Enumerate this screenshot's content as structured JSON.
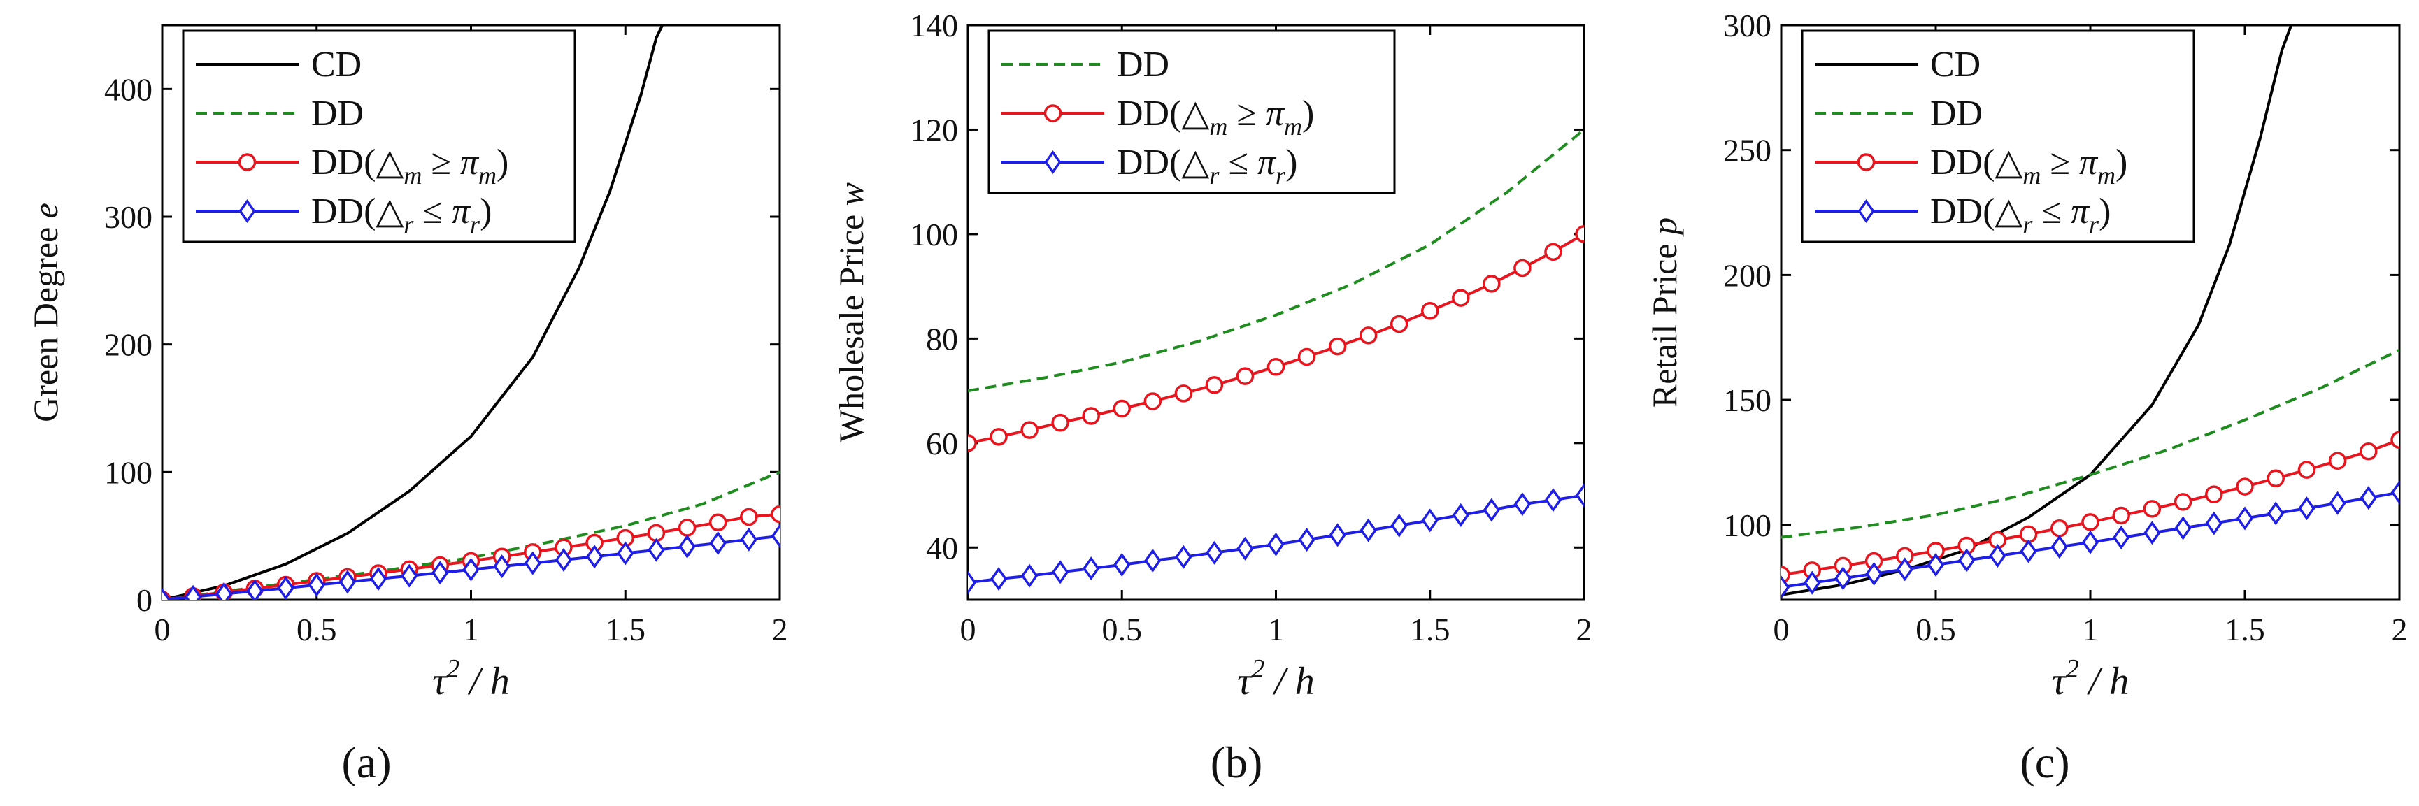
{
  "chart_data": [
    {
      "type": "line",
      "panel": "(a)",
      "ylabel": "Green Degree",
      "ylabel_var": "e",
      "xlabel": "τ² / h",
      "xlim": [
        0,
        2
      ],
      "ylim": [
        0,
        450
      ],
      "xticks": [
        0,
        0.5,
        1,
        1.5,
        2
      ],
      "xtick_labels": [
        "0",
        "0.5",
        "1",
        "1.5",
        "2"
      ],
      "yticks": [
        0,
        100,
        200,
        300,
        400
      ],
      "ytick_labels": [
        "0",
        "100",
        "200",
        "300",
        "400"
      ],
      "legend_position": "top-left",
      "series": [
        {
          "name": "CD",
          "legend": "CD",
          "color": "#000000",
          "style": "solid",
          "marker": "none",
          "x": [
            0,
            0.2,
            0.4,
            0.6,
            0.8,
            1.0,
            1.2,
            1.35,
            1.45,
            1.55,
            1.6,
            1.62
          ],
          "y": [
            0,
            11,
            28,
            52,
            85,
            128,
            190,
            260,
            320,
            395,
            440,
            450
          ]
        },
        {
          "name": "DD",
          "legend": "DD",
          "color": "#1e8c1e",
          "style": "dashed",
          "marker": "none",
          "x": [
            0,
            0.25,
            0.5,
            0.75,
            1.0,
            1.25,
            1.5,
            1.75,
            2.0
          ],
          "y": [
            0,
            8,
            16,
            24,
            33,
            45,
            58,
            75,
            100
          ]
        },
        {
          "name": "DD(Δm ≥ πm)",
          "legend": "DD(",
          "color": "#e8141e",
          "style": "solid",
          "marker": "circle",
          "x": [
            0,
            0.1,
            0.2,
            0.3,
            0.4,
            0.5,
            0.6,
            0.7,
            0.8,
            0.9,
            1.0,
            1.1,
            1.2,
            1.3,
            1.4,
            1.5,
            1.6,
            1.7,
            1.8,
            1.9,
            2.0
          ],
          "y": [
            0,
            2.9,
            5.9,
            8.8,
            11.8,
            14.8,
            17.8,
            20.8,
            23.9,
            27.1,
            30.4,
            33.8,
            37.3,
            40.9,
            44.6,
            48.4,
            52.3,
            56.4,
            60.6,
            64.9,
            67
          ]
        },
        {
          "name": "DD(Δr ≤ πr)",
          "legend": "DD(",
          "color": "#1e1ee6",
          "style": "solid",
          "marker": "diamond",
          "x": [
            0,
            0.1,
            0.2,
            0.3,
            0.4,
            0.5,
            0.6,
            0.7,
            0.8,
            0.9,
            1.0,
            1.1,
            1.2,
            1.3,
            1.4,
            1.5,
            1.6,
            1.7,
            1.8,
            1.9,
            2.0
          ],
          "y": [
            0,
            2.3,
            4.6,
            6.9,
            9.2,
            11.6,
            14.0,
            16.4,
            18.8,
            21.2,
            23.7,
            26.2,
            28.7,
            31.2,
            33.8,
            36.4,
            39.0,
            41.7,
            44.4,
            47.2,
            50
          ]
        }
      ]
    },
    {
      "type": "line",
      "panel": "(b)",
      "ylabel": "Wholesale Price",
      "ylabel_var": "w",
      "xlabel": "τ² / h",
      "xlim": [
        0,
        2
      ],
      "ylim": [
        30,
        140
      ],
      "xticks": [
        0,
        0.5,
        1,
        1.5,
        2
      ],
      "xtick_labels": [
        "0",
        "0.5",
        "1",
        "1.5",
        "2"
      ],
      "yticks": [
        40,
        60,
        80,
        100,
        120,
        140
      ],
      "ytick_labels": [
        "40",
        "60",
        "80",
        "100",
        "120",
        "140"
      ],
      "legend_position": "top-left",
      "series": [
        {
          "name": "DD",
          "legend": "DD",
          "color": "#1e8c1e",
          "style": "dashed",
          "marker": "none",
          "x": [
            0,
            0.25,
            0.5,
            0.75,
            1.0,
            1.25,
            1.5,
            1.75,
            2.0
          ],
          "y": [
            70,
            72.5,
            75.5,
            79.5,
            84.5,
            90.5,
            98,
            108,
            120
          ]
        },
        {
          "name": "DD(Δm ≥ πm)",
          "legend": "DD(",
          "color": "#e8141e",
          "style": "solid",
          "marker": "circle",
          "x": [
            0,
            0.1,
            0.2,
            0.3,
            0.4,
            0.5,
            0.6,
            0.7,
            0.8,
            0.9,
            1.0,
            1.1,
            1.2,
            1.3,
            1.4,
            1.5,
            1.6,
            1.7,
            1.8,
            1.9,
            2.0
          ],
          "y": [
            60,
            61.2,
            62.5,
            63.9,
            65.2,
            66.6,
            68,
            69.5,
            71.1,
            72.8,
            74.6,
            76.5,
            78.5,
            80.6,
            82.8,
            85.3,
            87.8,
            90.5,
            93.5,
            96.6,
            100
          ]
        },
        {
          "name": "DD(Δr ≤ πr)",
          "legend": "DD(",
          "color": "#1e1ee6",
          "style": "solid",
          "marker": "diamond",
          "x": [
            0,
            0.1,
            0.2,
            0.3,
            0.4,
            0.5,
            0.6,
            0.7,
            0.8,
            0.9,
            1.0,
            1.1,
            1.2,
            1.3,
            1.4,
            1.5,
            1.6,
            1.7,
            1.8,
            1.9,
            2.0
          ],
          "y": [
            33.3,
            34,
            34.6,
            35.3,
            36,
            36.7,
            37.5,
            38.2,
            39,
            39.8,
            40.6,
            41.5,
            42.4,
            43.3,
            44.2,
            45.2,
            46.2,
            47.2,
            48.3,
            49.1,
            50
          ]
        }
      ]
    },
    {
      "type": "line",
      "panel": "(c)",
      "ylabel": "Retail Price",
      "ylabel_var": "p",
      "xlabel": "τ² / h",
      "xlim": [
        0,
        2
      ],
      "ylim": [
        70,
        300
      ],
      "xticks": [
        0,
        0.5,
        1,
        1.5,
        2
      ],
      "xtick_labels": [
        "0",
        "0.5",
        "1",
        "1.5",
        "2"
      ],
      "yticks": [
        100,
        150,
        200,
        250,
        300
      ],
      "ytick_labels": [
        "100",
        "150",
        "200",
        "250",
        "300"
      ],
      "legend_position": "top-left",
      "series": [
        {
          "name": "CD",
          "legend": "CD",
          "color": "#000000",
          "style": "solid",
          "marker": "none",
          "x": [
            0,
            0.2,
            0.4,
            0.6,
            0.8,
            1.0,
            1.2,
            1.35,
            1.45,
            1.55,
            1.62,
            1.65
          ],
          "y": [
            72,
            76,
            82,
            90,
            103,
            120,
            148,
            180,
            212,
            255,
            290,
            300
          ]
        },
        {
          "name": "DD",
          "legend": "DD",
          "color": "#1e8c1e",
          "style": "dashed",
          "marker": "none",
          "x": [
            0,
            0.25,
            0.5,
            0.75,
            1.0,
            1.25,
            1.5,
            1.75,
            2.0
          ],
          "y": [
            95,
            99,
            104,
            111,
            120,
            130,
            142,
            155,
            170
          ]
        },
        {
          "name": "DD(Δm ≥ πm)",
          "legend": "DD(",
          "color": "#e8141e",
          "style": "solid",
          "marker": "circle",
          "x": [
            0,
            0.1,
            0.2,
            0.3,
            0.4,
            0.5,
            0.6,
            0.7,
            0.8,
            0.9,
            1.0,
            1.1,
            1.2,
            1.3,
            1.4,
            1.5,
            1.6,
            1.7,
            1.8,
            1.9,
            2.0
          ],
          "y": [
            80,
            81.8,
            83.6,
            85.5,
            87.5,
            89.6,
            91.7,
            93.9,
            96.2,
            98.6,
            101.1,
            103.7,
            106.4,
            109.2,
            112.2,
            115.3,
            118.6,
            122,
            125.6,
            129.4,
            134
          ]
        },
        {
          "name": "DD(Δr ≤ πr)",
          "legend": "DD(",
          "color": "#1e1ee6",
          "style": "solid",
          "marker": "diamond",
          "x": [
            0,
            0.1,
            0.2,
            0.3,
            0.4,
            0.5,
            0.6,
            0.7,
            0.8,
            0.9,
            1.0,
            1.1,
            1.2,
            1.3,
            1.4,
            1.5,
            1.6,
            1.7,
            1.8,
            1.9,
            2.0
          ],
          "y": [
            75,
            76.8,
            78.6,
            80.4,
            82.2,
            84,
            85.8,
            87.6,
            89.4,
            91.2,
            93,
            94.9,
            96.8,
            98.7,
            100.6,
            102.6,
            104.6,
            106.6,
            108.7,
            110.8,
            113
          ]
        }
      ]
    }
  ],
  "legend_math": {
    "m_sub": "m",
    "r_sub": "r",
    "ge": "≥",
    "le": "≤",
    "delta": "△",
    "pi": "π",
    "close": ")"
  },
  "xlabel_parts": {
    "tau": "τ",
    "sup": "2",
    "slash_h": "/ h"
  }
}
